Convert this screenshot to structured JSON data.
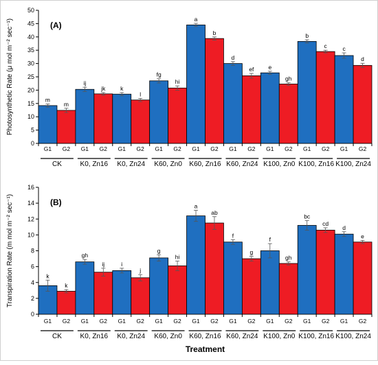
{
  "chart_data": [
    {
      "type": "bar",
      "panel_label": "(A)",
      "ylabel": "Photosynthetic Rate (μ mol m⁻² sec⁻¹)",
      "ylim": [
        0,
        50
      ],
      "yticks": [
        0,
        5,
        10,
        15,
        20,
        25,
        30,
        35,
        40,
        45,
        50
      ],
      "groups": [
        "CK",
        "K0, Zn16",
        "K0, Zn24",
        "K60, Zn0",
        "K60, Zn16",
        "K60, Zn24",
        "K100, Zn0",
        "K100, Zn16",
        "K100, Zn24"
      ],
      "subcategories": [
        "G1",
        "G2"
      ],
      "series": [
        {
          "name": "G1",
          "color": "#1f6fc0",
          "values": [
            14.2,
            20.3,
            18.5,
            23.5,
            44.5,
            30.0,
            26.5,
            38.3,
            33.0
          ],
          "errors": [
            0.6,
            0.8,
            0.6,
            0.8,
            0.6,
            0.7,
            0.6,
            0.6,
            1.0
          ],
          "letters": [
            "m",
            "ij",
            "k",
            "fg",
            "a",
            "d",
            "e",
            "b",
            "c"
          ]
        },
        {
          "name": "G2",
          "color": "#ee1c24",
          "values": [
            12.4,
            18.6,
            16.3,
            20.8,
            39.4,
            25.4,
            22.3,
            34.5,
            29.3
          ],
          "errors": [
            0.8,
            0.5,
            0.6,
            0.8,
            0.6,
            0.9,
            0.5,
            0.5,
            0.8
          ],
          "letters": [
            "m",
            "jk",
            "l",
            "hi",
            "b",
            "ef",
            "gh",
            "c",
            "d"
          ]
        }
      ]
    },
    {
      "type": "bar",
      "panel_label": "(B)",
      "ylabel": "Transpiration Rate (m mol m⁻² sec⁻¹)",
      "xlabel": "Treatment",
      "ylim": [
        0,
        16
      ],
      "yticks": [
        0,
        2,
        4,
        6,
        8,
        10,
        12,
        14,
        16
      ],
      "groups": [
        "CK",
        "K0, Zn16",
        "K0, Zn24",
        "K60, Zn0",
        "K60, Zn16",
        "K60, Zn24",
        "K100, Zn0",
        "K100, Zn16",
        "K100, Zn24"
      ],
      "subcategories": [
        "G1",
        "G2"
      ],
      "series": [
        {
          "name": "G1",
          "color": "#1f6fc0",
          "values": [
            3.6,
            6.6,
            5.5,
            7.1,
            12.4,
            9.1,
            8.0,
            11.2,
            10.1
          ],
          "errors": [
            0.7,
            0.3,
            0.3,
            0.4,
            0.7,
            0.3,
            0.9,
            0.6,
            0.3
          ],
          "letters": [
            "k",
            "gh",
            "i",
            "g",
            "a",
            "f",
            "f",
            "bc",
            "d"
          ]
        },
        {
          "name": "G2",
          "color": "#ee1c24",
          "values": [
            2.9,
            5.3,
            4.6,
            6.1,
            11.5,
            7.0,
            6.4,
            10.6,
            9.1
          ],
          "errors": [
            0.2,
            0.5,
            0.4,
            0.6,
            0.8,
            0.3,
            0.2,
            0.3,
            0.2
          ],
          "letters": [
            "k",
            "ij",
            "j",
            "hi",
            "ab",
            "g",
            "gh",
            "cd",
            "e"
          ]
        }
      ]
    }
  ]
}
